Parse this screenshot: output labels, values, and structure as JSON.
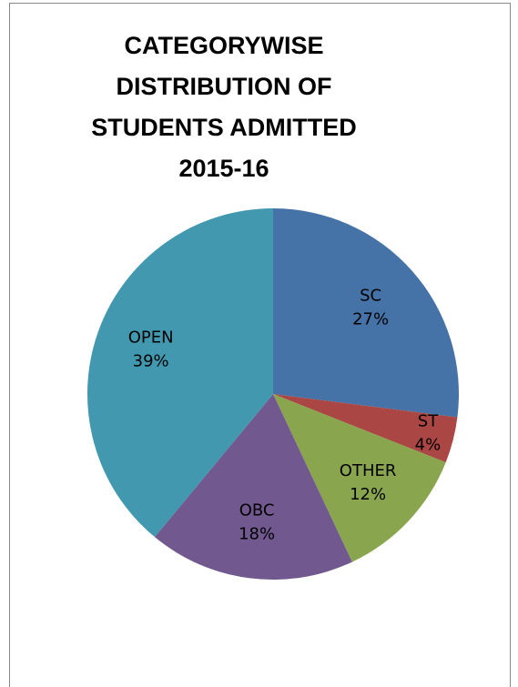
{
  "chart_data": {
    "type": "pie",
    "title": "CATEGORYWISE DISTRIBUTION OF STUDENTS ADMITTED 2015-16",
    "categories": [
      "SC",
      "ST",
      "OTHER",
      "OBC",
      "OPEN"
    ],
    "values": [
      27,
      4,
      12,
      18,
      39
    ],
    "value_labels": [
      "27%",
      "4%",
      "12%",
      "18%",
      "39%"
    ],
    "colors": [
      "#4572a7",
      "#aa4643",
      "#89a54e",
      "#71588f",
      "#4198af"
    ]
  }
}
